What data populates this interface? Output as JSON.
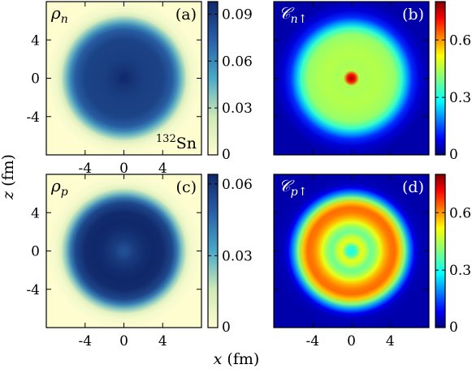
{
  "chart_data": [
    {
      "type": "heatmap",
      "panel": "(a)",
      "symbol": "ρ",
      "subscript": "n",
      "arrow": "",
      "colormap": "density",
      "annotation": "132Sn",
      "annotation_super": "132",
      "annotation_main": "Sn",
      "colorbar": {
        "ticks": [
          "0.09",
          "0.06",
          "0.03",
          "0"
        ],
        "tick_values": [
          0.09,
          0.06,
          0.03,
          0
        ],
        "range": [
          0,
          0.098
        ]
      },
      "x_ticks": [
        "-4",
        "0",
        "4"
      ],
      "y_ticks": [
        "4",
        "0",
        "-4"
      ],
      "radial_profile": {
        "r_fm": [
          0,
          1,
          2,
          3,
          4,
          5,
          5.5,
          6,
          6.5,
          7,
          8
        ],
        "value": [
          0.098,
          0.092,
          0.088,
          0.087,
          0.086,
          0.075,
          0.06,
          0.04,
          0.018,
          0.006,
          0.0
        ]
      }
    },
    {
      "type": "heatmap",
      "panel": "(b)",
      "symbol": "𝒞",
      "subscript": "n",
      "arrow": "↑",
      "colormap": "jet",
      "annotation": "",
      "annotation_super": "",
      "annotation_main": "",
      "colorbar": {
        "ticks": [
          "0.6",
          "0.3",
          "0"
        ],
        "tick_values": [
          0.6,
          0.3,
          0
        ],
        "range": [
          0,
          0.8
        ]
      },
      "x_ticks": [],
      "y_ticks": [],
      "radial_profile": {
        "r_fm": [
          0,
          0.4,
          0.8,
          1.5,
          2.5,
          3.5,
          4.5,
          5.2,
          5.7,
          6.3,
          7,
          8
        ],
        "value": [
          0.78,
          0.7,
          0.45,
          0.44,
          0.45,
          0.44,
          0.42,
          0.33,
          0.22,
          0.12,
          0.06,
          0.03
        ]
      }
    },
    {
      "type": "heatmap",
      "panel": "(c)",
      "symbol": "ρ",
      "subscript": "p",
      "arrow": "",
      "colormap": "density",
      "annotation": "",
      "annotation_super": "",
      "annotation_main": "",
      "colorbar": {
        "ticks": [
          "0.06",
          "0.03",
          "0"
        ],
        "tick_values": [
          0.06,
          0.03,
          0
        ],
        "range": [
          0,
          0.064
        ]
      },
      "x_ticks": [
        "-4",
        "0",
        "4"
      ],
      "y_ticks": [
        "4",
        "0",
        "-4"
      ],
      "radial_profile": {
        "r_fm": [
          0,
          0.5,
          1,
          2,
          3,
          4,
          5,
          5.5,
          6,
          6.5,
          7,
          8
        ],
        "value": [
          0.052,
          0.054,
          0.058,
          0.062,
          0.064,
          0.063,
          0.055,
          0.042,
          0.025,
          0.01,
          0.003,
          0.0
        ]
      }
    },
    {
      "type": "heatmap",
      "panel": "(d)",
      "symbol": "𝒞",
      "subscript": "p",
      "arrow": "↑",
      "colormap": "jet",
      "annotation": "",
      "annotation_super": "",
      "annotation_main": "",
      "colorbar": {
        "ticks": [
          "0.6",
          "0.3",
          "0"
        ],
        "tick_values": [
          0.6,
          0.3,
          0
        ],
        "range": [
          0,
          0.8
        ]
      },
      "x_ticks": [
        "-4",
        "0",
        "4"
      ],
      "y_ticks": [],
      "radial_profile": {
        "r_fm": [
          0,
          0.5,
          1,
          1.5,
          2,
          2.5,
          3,
          3.5,
          4,
          4.5,
          5,
          5.5,
          6,
          6.5,
          7,
          8
        ],
        "value": [
          0.3,
          0.34,
          0.5,
          0.46,
          0.38,
          0.42,
          0.5,
          0.58,
          0.62,
          0.63,
          0.56,
          0.4,
          0.2,
          0.08,
          0.04,
          0.03
        ]
      }
    }
  ],
  "axes": {
    "xlabel": "x",
    "xunit": " (fm)",
    "ylabel": "z",
    "yunit": " (fm)",
    "xrange": [
      -8,
      8
    ],
    "zrange": [
      -8,
      8
    ]
  },
  "colors": {
    "density_low": "#fdfdd0",
    "density_mid": "#4aa9c7",
    "density_high": "#0f2869",
    "jet_low": "#00007f",
    "jet_high": "#7f0000"
  }
}
